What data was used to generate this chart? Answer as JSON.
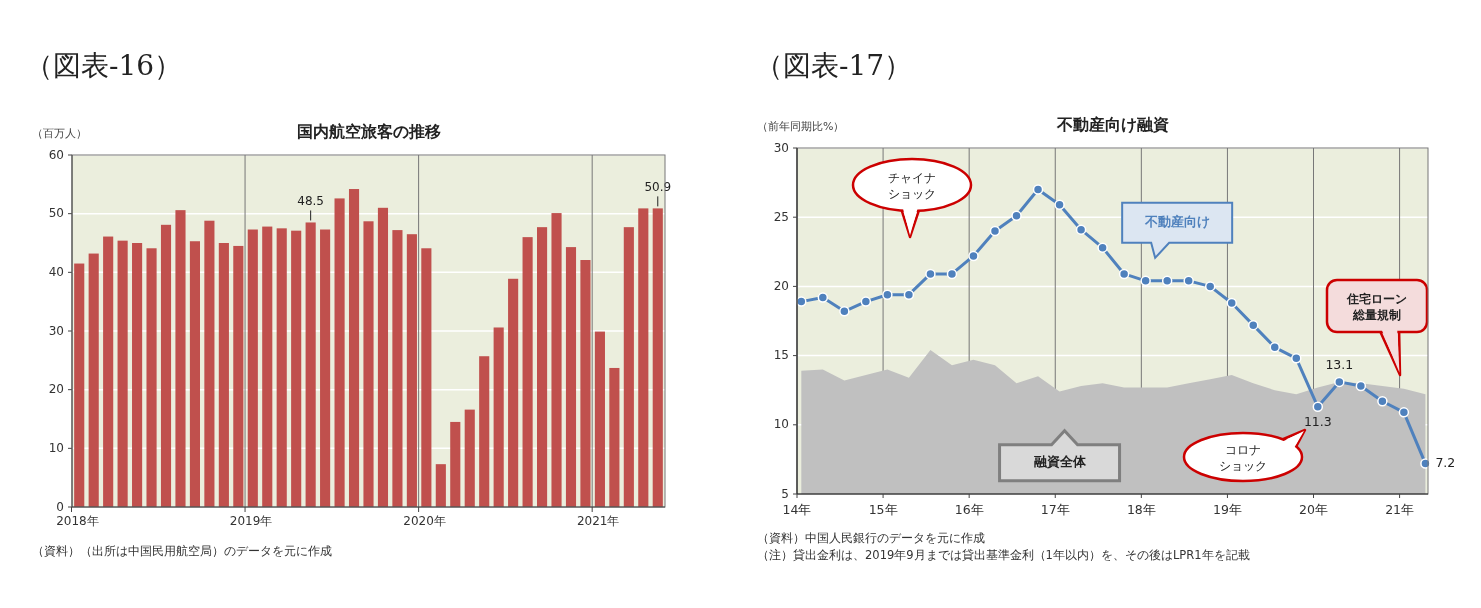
{
  "chart_data": [
    {
      "type": "bar",
      "subtitle": "（図表-16）",
      "title": "国内航空旅客の推移",
      "ylabel": "（百万人）",
      "categories": [
        "2018年",
        null,
        null,
        null,
        null,
        null,
        null,
        null,
        null,
        null,
        null,
        null,
        "2019年",
        null,
        null,
        null,
        null,
        null,
        null,
        null,
        null,
        null,
        null,
        null,
        "2020年",
        null,
        null,
        null,
        null,
        null,
        null,
        null,
        null,
        null,
        null,
        null,
        "2021年",
        null,
        null,
        null,
        null
      ],
      "values": [
        41.5,
        43.2,
        46.1,
        45.4,
        45.0,
        44.1,
        48.1,
        50.6,
        45.3,
        48.8,
        45.0,
        44.5,
        47.3,
        47.8,
        47.5,
        47.1,
        48.5,
        47.3,
        52.6,
        54.2,
        48.7,
        51.0,
        47.2,
        46.5,
        44.1,
        7.3,
        14.5,
        16.6,
        25.7,
        30.6,
        38.9,
        46.0,
        47.7,
        50.1,
        44.3,
        42.1,
        29.9,
        23.7,
        47.7,
        50.9,
        50.9
      ],
      "value_labels": [
        null,
        null,
        null,
        null,
        null,
        null,
        null,
        null,
        null,
        null,
        null,
        null,
        null,
        null,
        null,
        null,
        "48.5",
        null,
        null,
        null,
        null,
        null,
        null,
        null,
        null,
        null,
        null,
        null,
        null,
        null,
        null,
        null,
        null,
        null,
        null,
        null,
        null,
        null,
        null,
        null,
        "50.9"
      ],
      "color": "#c0504d",
      "ylim": [
        0,
        60
      ],
      "yticks": [
        0,
        10,
        20,
        30,
        40,
        50,
        60
      ],
      "grid": true,
      "annotations": [
        "（資料）（出所は中国民用航空局）のデータを元に作成"
      ]
    },
    {
      "type": "line",
      "subtitle": "（図表-17）",
      "title": "不動産向け融資",
      "ylabel": "（前年同期比%）",
      "x": [
        14.05,
        14.3,
        14.55,
        14.8,
        15.05,
        15.3,
        15.55,
        15.8,
        16.05,
        16.3,
        16.55,
        16.8,
        17.05,
        17.3,
        17.55,
        17.8,
        18.05,
        18.3,
        18.55,
        18.8,
        19.05,
        19.3,
        19.55,
        19.8,
        20.05,
        20.3,
        20.55,
        20.8,
        21.05,
        21.3
      ],
      "series": [
        {
          "name": "融資全体",
          "type": "area",
          "color": "#c0c0c0",
          "values": [
            13.9,
            14.0,
            13.2,
            13.6,
            14.0,
            13.4,
            15.4,
            14.3,
            14.7,
            14.3,
            13.0,
            13.5,
            12.4,
            12.8,
            13.0,
            12.7,
            12.7,
            12.7,
            13.0,
            13.3,
            13.6,
            13.0,
            12.5,
            12.2,
            12.7,
            13.1,
            13.0,
            12.8,
            12.6,
            12.2
          ]
        },
        {
          "name": "不動産向け",
          "type": "line",
          "color": "#4f81bd",
          "marker": "circle",
          "values": [
            18.9,
            19.2,
            18.2,
            18.9,
            19.4,
            19.4,
            20.9,
            20.9,
            22.2,
            24.0,
            25.1,
            27.0,
            25.9,
            24.1,
            22.8,
            20.9,
            20.4,
            20.4,
            20.4,
            20.0,
            18.8,
            17.2,
            15.6,
            14.8,
            11.3,
            13.1,
            12.8,
            11.7,
            10.9,
            7.2
          ]
        }
      ],
      "xlim": [
        14,
        21.33
      ],
      "xticks": [
        {
          "value": 14,
          "label": "14年"
        },
        {
          "value": 15,
          "label": "15年"
        },
        {
          "value": 16,
          "label": "16年"
        },
        {
          "value": 17,
          "label": "17年"
        },
        {
          "value": 18,
          "label": "18年"
        },
        {
          "value": 19,
          "label": "19年"
        },
        {
          "value": 20,
          "label": "20年"
        },
        {
          "value": 21,
          "label": "21年"
        }
      ],
      "ylim": [
        5,
        30
      ],
      "yticks": [
        5,
        10,
        15,
        20,
        25,
        30
      ],
      "grid": true,
      "annotations": [
        "チャイナショック",
        "住宅ローン総量規制",
        "コロナショック",
        {
          "text": "13.1",
          "x": 20.3,
          "y": 13.1
        },
        {
          "text": "11.3",
          "x": 20.05,
          "y": 11.3
        },
        {
          "text": "7.2",
          "x": 21.3,
          "y": 7.2
        },
        "（資料）中国人民銀行のデータを元に作成",
        "（注）貸出金利は、2019年9月までは貸出基準金利（1年以内）を、その後はLPR1年を記載"
      ]
    }
  ]
}
